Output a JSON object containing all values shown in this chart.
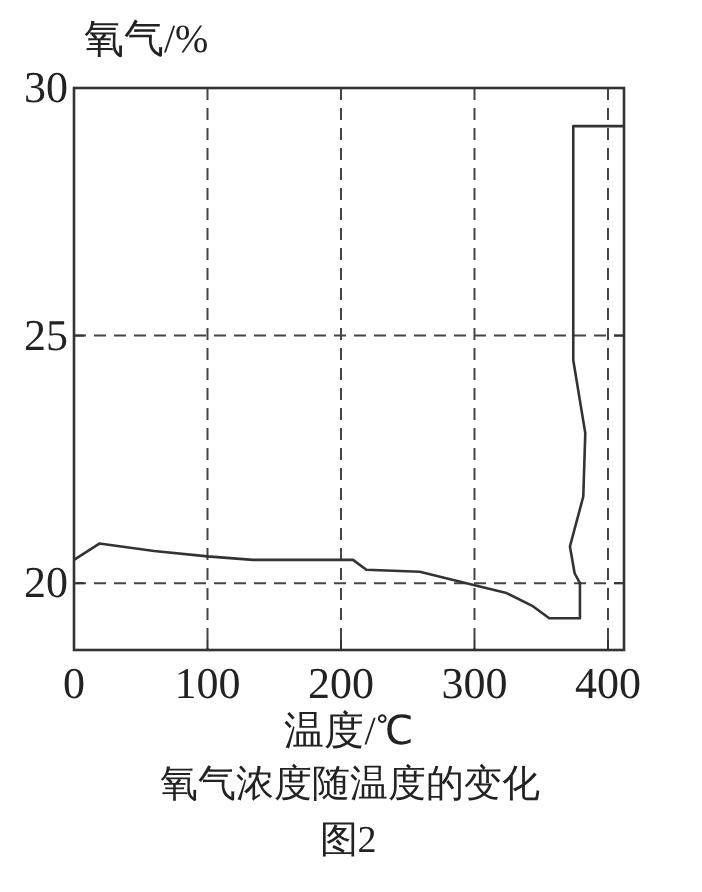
{
  "chart_data": {
    "type": "line",
    "title": "氧气浓度随温度的变化",
    "xlabel": "温度/℃",
    "ylabel": "氧气/%",
    "annotations": [
      "图2"
    ],
    "xlim": [
      0,
      412
    ],
    "xticks": [
      0,
      100,
      200,
      300,
      400
    ],
    "ylim": [
      18.65,
      30
    ],
    "yticks": [
      20,
      25,
      30
    ],
    "grid": true,
    "line_style": "solid",
    "marker": "none",
    "series": [
      {
        "color": "#333333",
        "x": [
          0,
          19,
          60,
          100,
          134,
          209,
          219,
          259,
          294,
          324,
          344,
          356,
          379,
          379,
          375,
          371.5,
          381.5,
          383,
          374,
          374,
          412
        ],
        "values": [
          20.47,
          20.8,
          20.65,
          20.54,
          20.47,
          20.47,
          20.27,
          20.23,
          20.0,
          19.8,
          19.53,
          19.29,
          19.29,
          20.0,
          20.2,
          20.74,
          21.75,
          23.03,
          24.5,
          29.23,
          29.23
        ]
      }
    ]
  }
}
